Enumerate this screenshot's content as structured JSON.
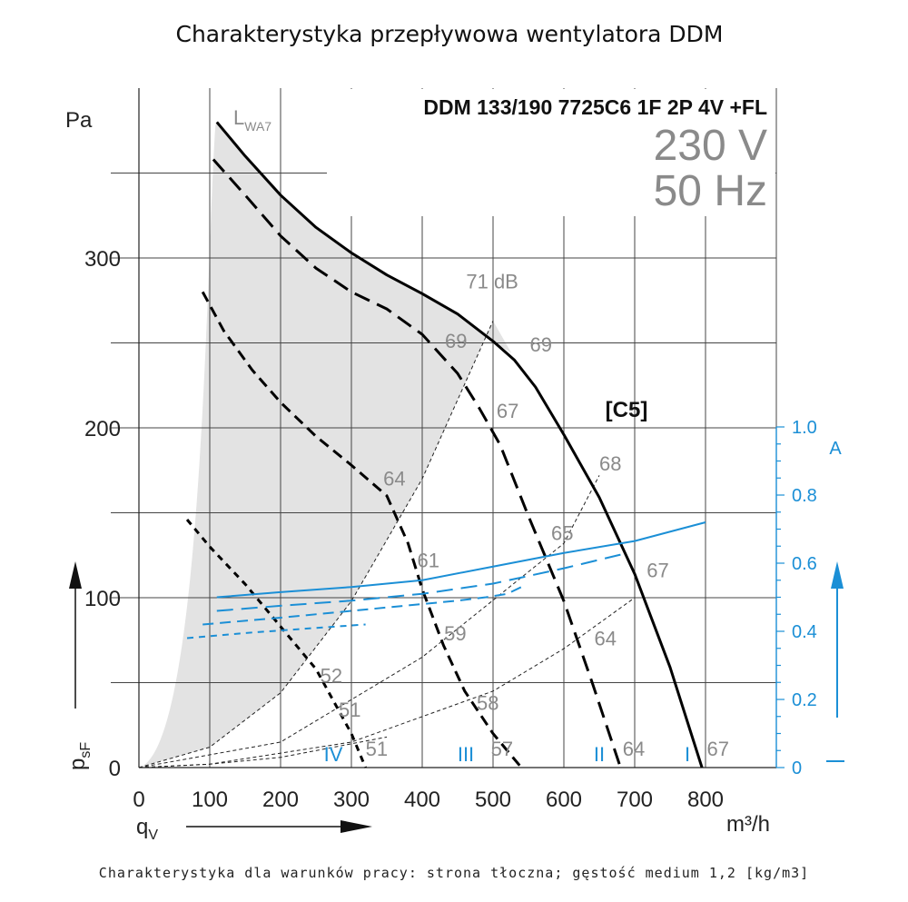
{
  "title": "Charakterystyka przepływowa wentylatora DDM",
  "footer": "Charakterystyka dla warunków pracy: strona tłoczna; gęstość medium 1,2 [kg/m3]",
  "model": "DDM 133/190 7725C6 1F 2P 4V +FL",
  "voltage": "230 V",
  "frequency": "50 Hz",
  "curve_code": "[C5]",
  "colors": {
    "curve": "#000000",
    "current": "#1b8fd6",
    "shade": "#e3e3e3",
    "grid": "#333333",
    "label": "#8a8a8a"
  },
  "chart_data": {
    "type": "line",
    "title": "Charakterystyka przepływowa wentylatora DDM",
    "xlabel": "qV",
    "xunit": "m³/h",
    "ylabel": "psF",
    "yunit": "Pa",
    "y2label": "A",
    "xlim": [
      0,
      900
    ],
    "ylim": [
      0,
      400
    ],
    "y2lim": [
      0,
      1.0
    ],
    "x_ticks": [
      "0",
      "100",
      "200",
      "300",
      "400",
      "500",
      "600",
      "700",
      "800"
    ],
    "y_ticks": [
      "0",
      "100",
      "200",
      "300"
    ],
    "y2_ticks": [
      "0",
      "0.2",
      "0.4",
      "0.6",
      "0.8",
      "1.0"
    ],
    "sound_label": "LWA7",
    "speed_labels": [
      "I",
      "II",
      "III",
      "IV"
    ],
    "series": [
      {
        "name": "I",
        "kind": "pressure",
        "style": "solid",
        "x": [
          110,
          150,
          200,
          250,
          300,
          350,
          400,
          450,
          500,
          530,
          560,
          600,
          650,
          700,
          750,
          795
        ],
        "y": [
          380,
          360,
          337,
          318,
          303,
          290,
          279,
          267,
          251,
          240,
          224,
          196,
          159,
          114,
          59,
          0
        ]
      },
      {
        "name": "II",
        "kind": "pressure",
        "style": "long-dash",
        "x": [
          105,
          150,
          200,
          250,
          300,
          350,
          400,
          450,
          480,
          510,
          550,
          600,
          640,
          680
        ],
        "y": [
          358,
          337,
          313,
          294,
          280,
          270,
          255,
          232,
          212,
          190,
          148,
          98,
          50,
          0
        ]
      },
      {
        "name": "III",
        "kind": "pressure",
        "style": "dash",
        "x": [
          90,
          120,
          160,
          200,
          250,
          300,
          350,
          380,
          400,
          430,
          460,
          500,
          540
        ],
        "y": [
          280,
          257,
          234,
          215,
          195,
          178,
          160,
          132,
          105,
          72,
          45,
          20,
          0
        ]
      },
      {
        "name": "IV",
        "kind": "pressure",
        "style": "short-dash",
        "x": [
          68,
          100,
          150,
          200,
          250,
          300,
          320
        ],
        "y": [
          146,
          130,
          108,
          83,
          58,
          20,
          0
        ]
      },
      {
        "name": "I current",
        "kind": "current",
        "style": "solid",
        "x": [
          110,
          200,
          300,
          400,
          500,
          600,
          700,
          800
        ],
        "y": [
          0.5,
          0.515,
          0.53,
          0.55,
          0.59,
          0.63,
          0.665,
          0.72
        ]
      },
      {
        "name": "II current",
        "kind": "current",
        "style": "long-dash",
        "x": [
          110,
          200,
          300,
          400,
          500,
          600,
          680
        ],
        "y": [
          0.46,
          0.475,
          0.49,
          0.51,
          0.54,
          0.585,
          0.625
        ]
      },
      {
        "name": "III current",
        "kind": "current",
        "style": "dash",
        "x": [
          90,
          200,
          300,
          400,
          450,
          490,
          520,
          540
        ],
        "y": [
          0.42,
          0.44,
          0.46,
          0.48,
          0.49,
          0.5,
          0.51,
          0.53
        ]
      },
      {
        "name": "IV current",
        "kind": "current",
        "style": "short-dash",
        "x": [
          68,
          150,
          250,
          320
        ],
        "y": [
          0.38,
          0.395,
          0.41,
          0.42
        ]
      }
    ],
    "system_curves": [
      {
        "x": [
          0,
          100,
          200,
          300,
          400,
          500
        ],
        "y": [
          0,
          12,
          44,
          98,
          170,
          263
        ]
      },
      {
        "x": [
          0,
          200,
          400,
          600,
          650
        ],
        "y": [
          0,
          15,
          65,
          132,
          172
        ]
      },
      {
        "x": [
          0,
          100,
          300,
          500,
          600,
          700
        ],
        "y": [
          0,
          2,
          15,
          45,
          70,
          100
        ]
      },
      {
        "x": [
          0,
          100,
          200,
          350
        ],
        "y": [
          0,
          2,
          6,
          18
        ]
      }
    ],
    "annotations": [
      {
        "text": "71 dB",
        "x": 462,
        "y": 282
      },
      {
        "text": "69",
        "x": 432,
        "y": 247
      },
      {
        "text": "69",
        "x": 552,
        "y": 245
      },
      {
        "text": "67",
        "x": 505,
        "y": 206
      },
      {
        "text": "68",
        "x": 650,
        "y": 175
      },
      {
        "text": "64",
        "x": 345,
        "y": 166
      },
      {
        "text": "65",
        "x": 582,
        "y": 134
      },
      {
        "text": "61",
        "x": 393,
        "y": 118
      },
      {
        "text": "67",
        "x": 717,
        "y": 112
      },
      {
        "text": "59",
        "x": 431,
        "y": 75
      },
      {
        "text": "64",
        "x": 643,
        "y": 72
      },
      {
        "text": "52",
        "x": 256,
        "y": 50
      },
      {
        "text": "51",
        "x": 282,
        "y": 30
      },
      {
        "text": "58",
        "x": 477,
        "y": 34
      },
      {
        "text": "51",
        "x": 320,
        "y": 7
      },
      {
        "text": "57",
        "x": 497,
        "y": 7
      },
      {
        "text": "64",
        "x": 683,
        "y": 7
      },
      {
        "text": "67",
        "x": 802,
        "y": 7
      }
    ]
  }
}
